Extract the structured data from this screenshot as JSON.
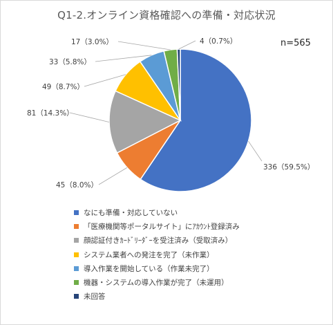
{
  "chart_data": {
    "type": "pie",
    "title": "Q1-2.オンライン資格確認への準備・対応状況",
    "annotation": "n=565",
    "legend_position": "bottom-left",
    "slices": [
      {
        "label": "なにも準備・対応していない",
        "value": 336,
        "percent_label": "336（59.5%）",
        "color": "#4472C4"
      },
      {
        "label": "「医療機関等ポータルサイト」にｱｶｳﾝﾄ登録済み",
        "value": 45,
        "percent_label": "45（8.0%）",
        "color": "#ED7D31"
      },
      {
        "label": "顔認証付きｶｰﾄﾞﾘｰﾀﾞｰを受注済み（受取済み）",
        "value": 81,
        "percent_label": "81（14.3%）",
        "color": "#A5A5A5"
      },
      {
        "label": "システム業者への発注を完了（未作業）",
        "value": 49,
        "percent_label": "49（8.7%）",
        "color": "#FFC000"
      },
      {
        "label": "導入作業を開始している（作業未完了）",
        "value": 33,
        "percent_label": "33（5.8%）",
        "color": "#5B9BD5"
      },
      {
        "label": "機器・システムの導入作業が完了（未運用）",
        "value": 17,
        "percent_label": "17（3.0%）",
        "color": "#70AD47"
      },
      {
        "label": "未回答",
        "value": 4,
        "percent_label": "4（0.7%）",
        "color": "#264478"
      }
    ]
  }
}
